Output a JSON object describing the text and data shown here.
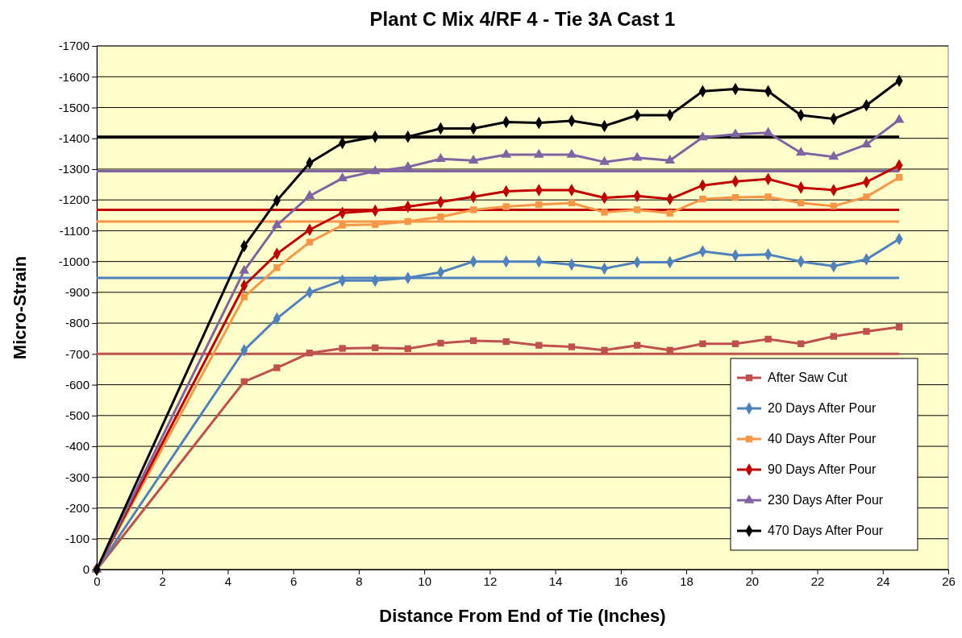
{
  "chart_data": {
    "type": "line",
    "title": "Plant C Mix 4/RF 4 - Tie 3A Cast 1",
    "xlabel": "Distance From End of Tie (Inches)",
    "ylabel": "Micro-Strain",
    "x": [
      0,
      4.5,
      5.5,
      6.5,
      7.5,
      8.5,
      9.5,
      10.5,
      11.5,
      12.5,
      13.5,
      14.5,
      15.5,
      16.5,
      17.5,
      18.5,
      19.5,
      20.5,
      21.5,
      22.5,
      23.5,
      24.5
    ],
    "series": [
      {
        "name": "After Saw Cut",
        "color": "#c0504d",
        "marker": "square",
        "values": [
          0,
          -610,
          -655,
          -703,
          -718,
          -720,
          -717,
          -735,
          -743,
          -740,
          -728,
          -723,
          -712,
          -728,
          -712,
          -733,
          -733,
          -748,
          -733,
          -757,
          -773,
          -787
        ]
      },
      {
        "name": "20 Days After Pour",
        "color": "#4f81bd",
        "marker": "diamond",
        "values": [
          0,
          -712,
          -815,
          -900,
          -938,
          -938,
          -947,
          -965,
          -1000,
          -1000,
          -1000,
          -990,
          -977,
          -998,
          -998,
          -1033,
          -1020,
          -1023,
          -1000,
          -985,
          -1007,
          -1073
        ]
      },
      {
        "name": "40 Days After Pour",
        "color": "#f79646",
        "marker": "square",
        "values": [
          0,
          -885,
          -980,
          -1063,
          -1118,
          -1120,
          -1130,
          -1145,
          -1168,
          -1178,
          -1185,
          -1190,
          -1160,
          -1168,
          -1157,
          -1203,
          -1208,
          -1210,
          -1190,
          -1180,
          -1210,
          -1273
        ]
      },
      {
        "name": "90 Days After Pour",
        "color": "#c00000",
        "marker": "diamond",
        "values": [
          0,
          -922,
          -1025,
          -1103,
          -1158,
          -1165,
          -1178,
          -1193,
          -1210,
          -1228,
          -1232,
          -1232,
          -1207,
          -1213,
          -1203,
          -1247,
          -1260,
          -1268,
          -1240,
          -1232,
          -1258,
          -1312
        ]
      },
      {
        "name": "230 Days After Pour",
        "color": "#8064a2",
        "marker": "triangle",
        "values": [
          0,
          -970,
          -1118,
          -1213,
          -1270,
          -1293,
          -1307,
          -1333,
          -1328,
          -1347,
          -1347,
          -1347,
          -1323,
          -1337,
          -1328,
          -1403,
          -1413,
          -1418,
          -1353,
          -1340,
          -1380,
          -1460
        ]
      },
      {
        "name": "470 Days After Pour",
        "color": "#000000",
        "marker": "diamond",
        "values": [
          0,
          -1050,
          -1198,
          -1320,
          -1385,
          -1405,
          -1405,
          -1432,
          -1432,
          -1453,
          -1450,
          -1457,
          -1440,
          -1475,
          -1475,
          -1553,
          -1560,
          -1553,
          -1475,
          -1463,
          -1507,
          -1587
        ]
      }
    ],
    "ref_lines": [
      {
        "axis": "y",
        "value": -700,
        "color": "#c0504d"
      },
      {
        "axis": "y",
        "value": -947,
        "color": "#4f81bd"
      },
      {
        "axis": "y",
        "value": -1130,
        "color": "#f79646"
      },
      {
        "axis": "y",
        "value": -1168,
        "color": "#c00000"
      },
      {
        "axis": "y",
        "value": -1293,
        "color": "#8064a2"
      },
      {
        "axis": "y",
        "value": -1405,
        "color": "#000000"
      }
    ],
    "xlim": [
      0,
      26
    ],
    "xticks": [
      0,
      2,
      4,
      6,
      8,
      10,
      12,
      14,
      16,
      18,
      20,
      22,
      24,
      26
    ],
    "ylim": [
      0,
      -1700
    ],
    "yticks": [
      0,
      -100,
      -200,
      -300,
      -400,
      -500,
      -600,
      -700,
      -800,
      -900,
      -1000,
      -1100,
      -1200,
      -1300,
      -1400,
      -1500,
      -1600,
      -1700
    ],
    "grid": "y",
    "legend": "bottom right",
    "line_style": "solid"
  }
}
